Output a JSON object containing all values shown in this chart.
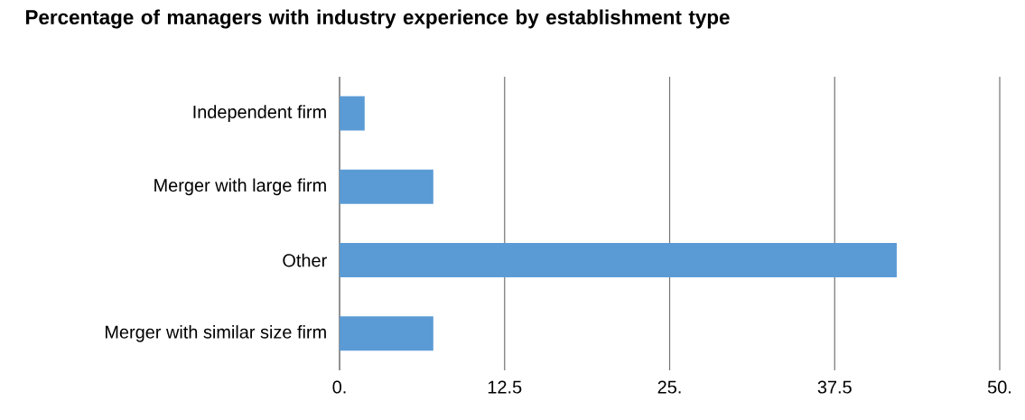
{
  "chart_data": {
    "type": "bar",
    "orientation": "horizontal",
    "title": "Percentage of managers with industry experience by establishment type",
    "categories": [
      "Independent firm",
      "Merger with large firm",
      "Other",
      "Merger with similar size firm"
    ],
    "values": [
      1.9,
      7.1,
      42.2,
      7.1
    ],
    "color": "#5b9bd5",
    "xlim": [
      0,
      50
    ],
    "xticks": [
      {
        "value": 0,
        "label": "0."
      },
      12.5,
      {
        "value": 25,
        "label": "25."
      },
      37.5,
      {
        "value": 50,
        "label": "50."
      }
    ],
    "grid": "x"
  }
}
